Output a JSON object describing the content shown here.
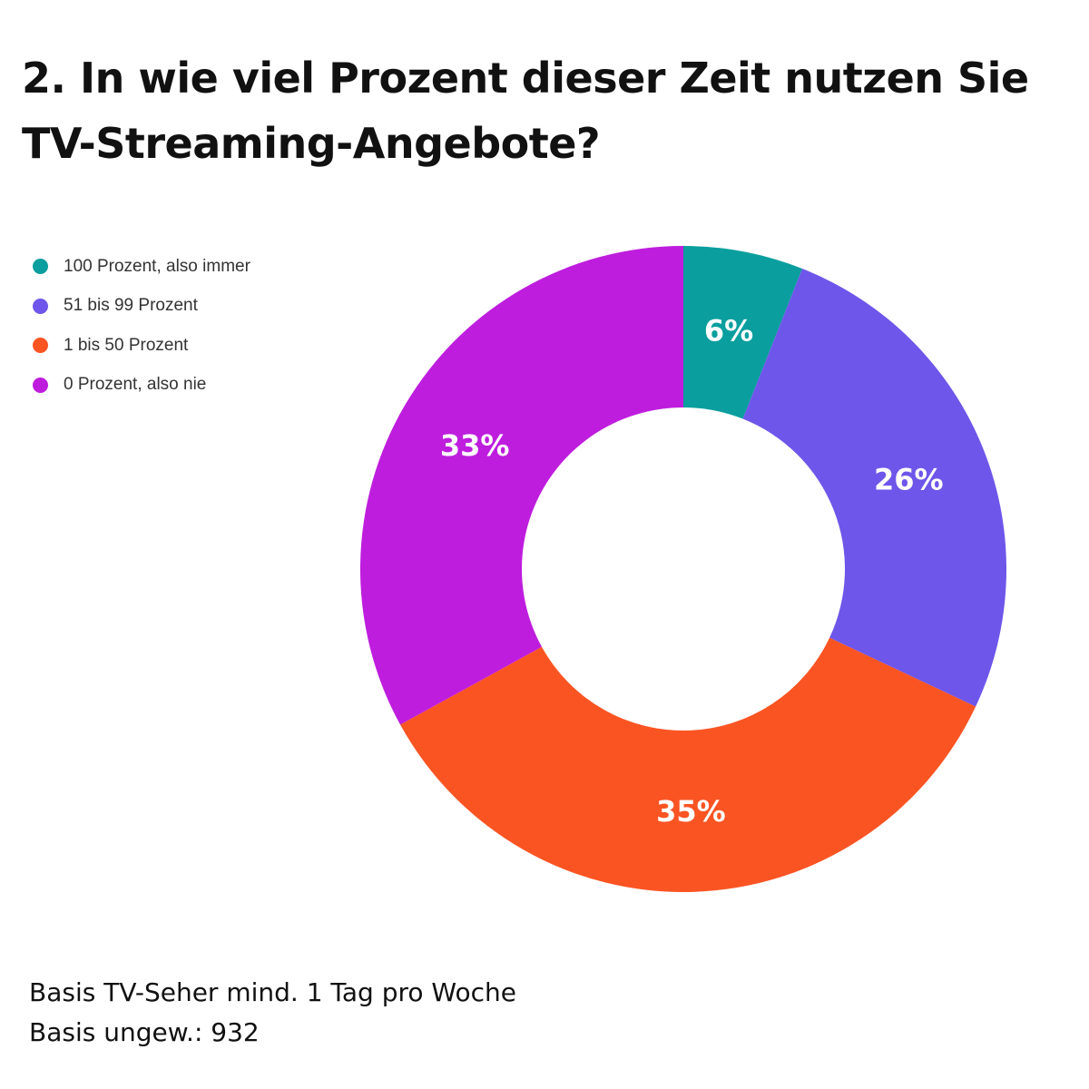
{
  "title": "2. In wie viel Prozent dieser Zeit nutzen Sie TV-Streaming-Angebote?",
  "colors": {
    "teal": "#0A9E9E",
    "violet": "#6E56EA",
    "orange": "#FB5423",
    "purple": "#BE1DDE"
  },
  "legend": {
    "position": "top-left",
    "items": [
      {
        "label": "100 Prozent, also immer",
        "color": "#0A9E9E"
      },
      {
        "label": "51 bis 99 Prozent",
        "color": "#6E56EA"
      },
      {
        "label": "1 bis 50 Prozent",
        "color": "#FB5423"
      },
      {
        "label": "0 Prozent, also nie",
        "color": "#BE1DDE"
      }
    ]
  },
  "chart_data": {
    "type": "pie",
    "variant": "donut",
    "title": "2. In wie viel Prozent dieser Zeit nutzen Sie TV-Streaming-Angebote?",
    "legend_position": "top-left",
    "categories": [
      "100 Prozent, also immer",
      "51 bis 99 Prozent",
      "1 bis 50 Prozent",
      "0 Prozent, also nie"
    ],
    "values": [
      6,
      26,
      35,
      33
    ],
    "labels": [
      "6%",
      "26%",
      "35%",
      "33%"
    ],
    "colors": [
      "#0A9E9E",
      "#6E56EA",
      "#FB5423",
      "#BE1DDE"
    ]
  },
  "footer": {
    "line1": "Basis TV-Seher mind. 1 Tag pro Woche",
    "line2": "Basis ungew.: 932"
  }
}
